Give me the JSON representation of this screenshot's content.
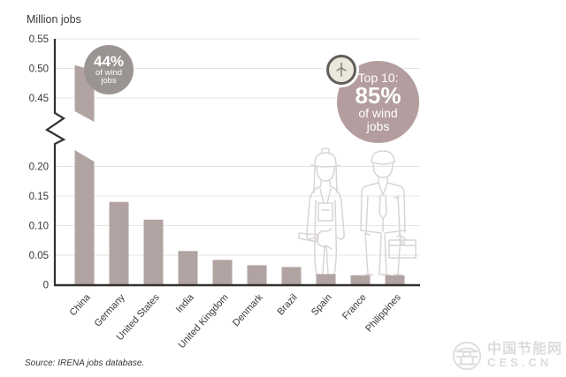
{
  "header": {
    "title": "Million jobs"
  },
  "footer": {
    "source": "Source: IRENA jobs database."
  },
  "badges": {
    "china": {
      "value": "44%",
      "line1": "of wind",
      "line2": "jobs"
    },
    "top10": {
      "intro": "Top 10:",
      "value": "85%",
      "line1": "of wind",
      "line2": "jobs"
    }
  },
  "watermark": {
    "name": "中国节能网",
    "domain": "CES.CN"
  },
  "colors": {
    "bar": "#b2a3a3",
    "badge_gray": "#9a9492",
    "badge_mauve": "#b49d9e",
    "axis_text": "#3b3734",
    "axis_line": "#33302e",
    "gridline": "#e6e4e3",
    "figure_outline": "#d9d5d4",
    "watermark": "#dcdcdc"
  },
  "chart_data": {
    "type": "bar",
    "title": "Million jobs",
    "xlabel": "",
    "ylabel": "Million jobs",
    "categories": [
      "China",
      "Germany",
      "United States",
      "India",
      "United Kingdom",
      "Denmark",
      "Brazil",
      "Spain",
      "France",
      "Philippines"
    ],
    "values": [
      0.51,
      0.14,
      0.11,
      0.057,
      0.042,
      0.033,
      0.03,
      0.018,
      0.016,
      0.016
    ],
    "yticks_lower": [
      0,
      0.05,
      0.1,
      0.15,
      0.2
    ],
    "yticks_upper": [
      0.45,
      0.5,
      0.55
    ],
    "axis_break": {
      "between": [
        0.225,
        0.44
      ]
    },
    "grid": true,
    "legend": "none",
    "bar_color": "#b2a3a3",
    "annotations": [
      "44% of wind jobs (China)",
      "Top 10: 85% of wind jobs"
    ]
  }
}
